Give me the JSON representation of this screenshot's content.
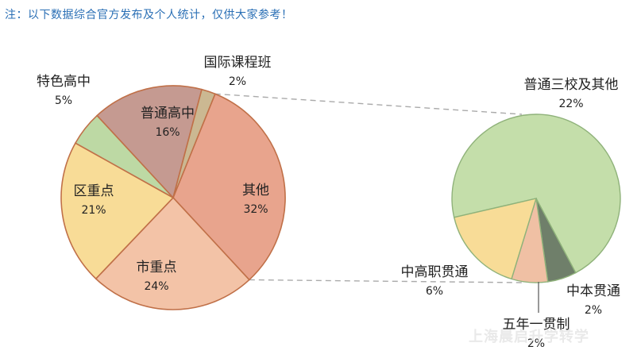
{
  "note": "注：以下数据综合官方发布及个人统计，仅供大家参考！",
  "watermark": "上海晨启升学转学",
  "colors": {
    "其他": "#e8a48d",
    "市重点": "#f3c3a7",
    "区重点": "#f8dc97",
    "特色高中": "#bdd9a4",
    "普通高中": "#c59a91",
    "国际课程班": "#cbb892",
    "普通三校及其他": "#c4deaa",
    "中本贯通": "#6f7f6a",
    "五年一贯制": "#f0c0a4",
    "中高职贯通": "#f8dc97"
  },
  "chart_data": [
    {
      "type": "pie",
      "title": "",
      "slices": [
        {
          "label": "其他",
          "value": 32
        },
        {
          "label": "市重点",
          "value": 24
        },
        {
          "label": "区重点",
          "value": 21
        },
        {
          "label": "特色高中",
          "value": 5
        },
        {
          "label": "普通高中",
          "value": 16
        },
        {
          "label": "国际课程班",
          "value": 2
        }
      ]
    },
    {
      "type": "pie",
      "title": "",
      "slices": [
        {
          "label": "普通三校及其他",
          "value": 22
        },
        {
          "label": "中本贯通",
          "value": 2
        },
        {
          "label": "五年一贯制",
          "value": 2
        },
        {
          "label": "中高职贯通",
          "value": 6
        }
      ]
    }
  ]
}
